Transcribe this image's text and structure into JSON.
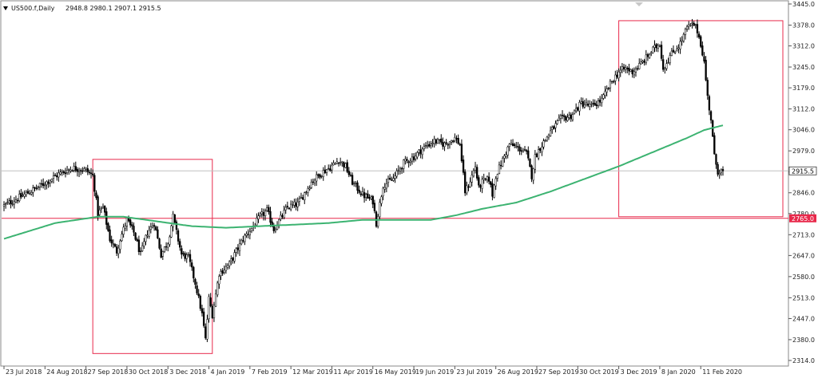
{
  "header": {
    "symbol": "US500.f,Daily",
    "ohlc": "2948.8 2980.1 2907.1 2915.5"
  },
  "colors": {
    "candle": "#000000",
    "ma": "#3cb371",
    "box": "#e8294b",
    "hline": "#e8294b",
    "current_line": "#c0c0c0"
  },
  "chart_data": {
    "type": "candlestick",
    "symbol": "US500.f",
    "timeframe": "Daily",
    "ylim": [
      2314.0,
      3445.0
    ],
    "y_ticks": [
      "3445.0",
      "3378.0",
      "3312.0",
      "3245.0",
      "3179.0",
      "3112.0",
      "3046.0",
      "2979.0",
      "2913.0",
      "2846.0",
      "2780.0",
      "2713.0",
      "2647.0",
      "2580.0",
      "2513.0",
      "2447.0",
      "2380.0",
      "2314.0"
    ],
    "x_ticks": [
      {
        "label": "23 Jul 2018",
        "idx": 0
      },
      {
        "label": "24 Aug 2018",
        "idx": 24
      },
      {
        "label": "27 Sep 2018",
        "idx": 48
      },
      {
        "label": "30 Oct 2018",
        "idx": 72
      },
      {
        "label": "3 Dec 2018",
        "idx": 96
      },
      {
        "label": "4 Jan 2019",
        "idx": 120
      },
      {
        "label": "7 Feb 2019",
        "idx": 144
      },
      {
        "label": "12 Mar 2019",
        "idx": 168
      },
      {
        "label": "11 Apr 2019",
        "idx": 192
      },
      {
        "label": "16 May 2019",
        "idx": 216
      },
      {
        "label": "19 Jun 2019",
        "idx": 240
      },
      {
        "label": "23 Jul 2019",
        "idx": 264
      },
      {
        "label": "26 Aug 2019",
        "idx": 288
      },
      {
        "label": "27 Sep 2019",
        "idx": 312
      },
      {
        "label": "30 Oct 2019",
        "idx": 336
      },
      {
        "label": "3 Dec 2019",
        "idx": 360
      },
      {
        "label": "8 Jan 2020",
        "idx": 384
      },
      {
        "label": "11 Feb 2020",
        "idx": 408
      }
    ],
    "n_bars": 422,
    "close_anchors": [
      [
        0,
        2805
      ],
      [
        12,
        2840
      ],
      [
        22,
        2870
      ],
      [
        32,
        2905
      ],
      [
        40,
        2925
      ],
      [
        48,
        2918
      ],
      [
        52,
        2900
      ],
      [
        55,
        2780
      ],
      [
        58,
        2800
      ],
      [
        62,
        2700
      ],
      [
        66,
        2660
      ],
      [
        68,
        2700
      ],
      [
        72,
        2760
      ],
      [
        76,
        2720
      ],
      [
        80,
        2650
      ],
      [
        84,
        2720
      ],
      [
        88,
        2750
      ],
      [
        92,
        2650
      ],
      [
        96,
        2690
      ],
      [
        99,
        2770
      ],
      [
        101,
        2720
      ],
      [
        104,
        2650
      ],
      [
        108,
        2640
      ],
      [
        112,
        2560
      ],
      [
        116,
        2460
      ],
      [
        118,
        2380
      ],
      [
        120,
        2510
      ],
      [
        122,
        2460
      ],
      [
        126,
        2590
      ],
      [
        132,
        2620
      ],
      [
        140,
        2700
      ],
      [
        146,
        2740
      ],
      [
        150,
        2770
      ],
      [
        154,
        2790
      ],
      [
        158,
        2730
      ],
      [
        166,
        2800
      ],
      [
        172,
        2810
      ],
      [
        180,
        2880
      ],
      [
        186,
        2910
      ],
      [
        192,
        2930
      ],
      [
        196,
        2950
      ],
      [
        200,
        2930
      ],
      [
        204,
        2880
      ],
      [
        210,
        2840
      ],
      [
        216,
        2820
      ],
      [
        218,
        2750
      ],
      [
        222,
        2870
      ],
      [
        228,
        2890
      ],
      [
        234,
        2940
      ],
      [
        240,
        2960
      ],
      [
        246,
        2990
      ],
      [
        252,
        3010
      ],
      [
        258,
        3000
      ],
      [
        264,
        3020
      ],
      [
        267,
        3000
      ],
      [
        270,
        2850
      ],
      [
        272,
        2870
      ],
      [
        276,
        2930
      ],
      [
        278,
        2860
      ],
      [
        280,
        2880
      ],
      [
        284,
        2890
      ],
      [
        286,
        2840
      ],
      [
        288,
        2900
      ],
      [
        292,
        2950
      ],
      [
        296,
        3000
      ],
      [
        300,
        2990
      ],
      [
        304,
        2980
      ],
      [
        306,
        2970
      ],
      [
        309,
        2900
      ],
      [
        311,
        2960
      ],
      [
        314,
        2990
      ],
      [
        320,
        3040
      ],
      [
        326,
        3080
      ],
      [
        332,
        3090
      ],
      [
        338,
        3130
      ],
      [
        344,
        3120
      ],
      [
        350,
        3140
      ],
      [
        356,
        3200
      ],
      [
        360,
        3230
      ],
      [
        364,
        3240
      ],
      [
        368,
        3230
      ],
      [
        374,
        3260
      ],
      [
        380,
        3300
      ],
      [
        384,
        3320
      ],
      [
        386,
        3240
      ],
      [
        390,
        3280
      ],
      [
        396,
        3320
      ],
      [
        400,
        3370
      ],
      [
        404,
        3380
      ],
      [
        406,
        3360
      ],
      [
        408,
        3320
      ],
      [
        410,
        3260
      ],
      [
        412,
        3150
      ],
      [
        414,
        3080
      ],
      [
        416,
        2960
      ],
      [
        418,
        2915
      ],
      [
        421,
        2915.5
      ]
    ],
    "ma_anchors": [
      [
        0,
        2700
      ],
      [
        30,
        2750
      ],
      [
        55,
        2770
      ],
      [
        70,
        2770
      ],
      [
        90,
        2755
      ],
      [
        110,
        2740
      ],
      [
        130,
        2735
      ],
      [
        150,
        2740
      ],
      [
        170,
        2745
      ],
      [
        190,
        2750
      ],
      [
        210,
        2760
      ],
      [
        230,
        2760
      ],
      [
        250,
        2760
      ],
      [
        265,
        2775
      ],
      [
        280,
        2795
      ],
      [
        300,
        2815
      ],
      [
        320,
        2850
      ],
      [
        340,
        2890
      ],
      [
        360,
        2930
      ],
      [
        380,
        2975
      ],
      [
        400,
        3020
      ],
      [
        410,
        3045
      ],
      [
        421,
        3060
      ]
    ],
    "boxes": [
      {
        "from_idx": 52,
        "to_idx": 122,
        "top": 2952,
        "bottom": 2336
      },
      {
        "from_idx": 360,
        "to_idx": 421,
        "top": 3392,
        "bottom": 2770
      }
    ],
    "hlines": [
      {
        "price": 2765.0,
        "label": "2765.0"
      }
    ],
    "current_price": {
      "price": 2915.5,
      "label": "2915.5"
    }
  }
}
